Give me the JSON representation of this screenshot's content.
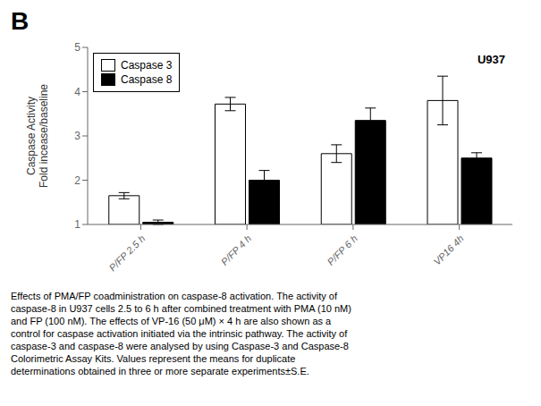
{
  "chart_data": {
    "type": "bar",
    "categories": [
      "P/FP 2.5 h",
      "P/FP 4 h",
      "P/FP 6 h",
      "VP16 4h"
    ],
    "series": [
      {
        "name": "Caspase 3",
        "color": "#ffffff",
        "values": [
          1.65,
          3.72,
          2.6,
          3.8
        ],
        "errors": [
          0.07,
          0.15,
          0.2,
          0.55
        ]
      },
      {
        "name": "Caspase 8",
        "color": "#000000",
        "values": [
          1.05,
          2.0,
          3.35,
          2.5
        ],
        "errors": [
          0.05,
          0.22,
          0.28,
          0.12
        ]
      }
    ],
    "ylim": [
      1,
      5
    ],
    "yticks": [
      1,
      2,
      3,
      4,
      5
    ],
    "ylabel": "Caspase Activity\nFold incease/baseline",
    "legend": "upper left",
    "grid": false,
    "annotation": "U937",
    "panel_label": "B",
    "caption": "Effects of PMA/FP coadministration on caspase-8 activation. The activity of\ncaspase-8 in U937 cells 2.5 to 6 h after combined treatment with PMA (10 nM)\nand FP (100 nM). The effects of VP-16 (50 μM) × 4 h are also shown as a\ncontrol for caspase activation initiated via the intrinsic pathway. The activity of\ncaspase-3 and caspase-8 were analysed by using Caspase-3 and Caspase-8\nColorimetric Assay Kits. Values represent the means for duplicate\ndeterminations obtained in three or more separate experiments±S.E."
  }
}
